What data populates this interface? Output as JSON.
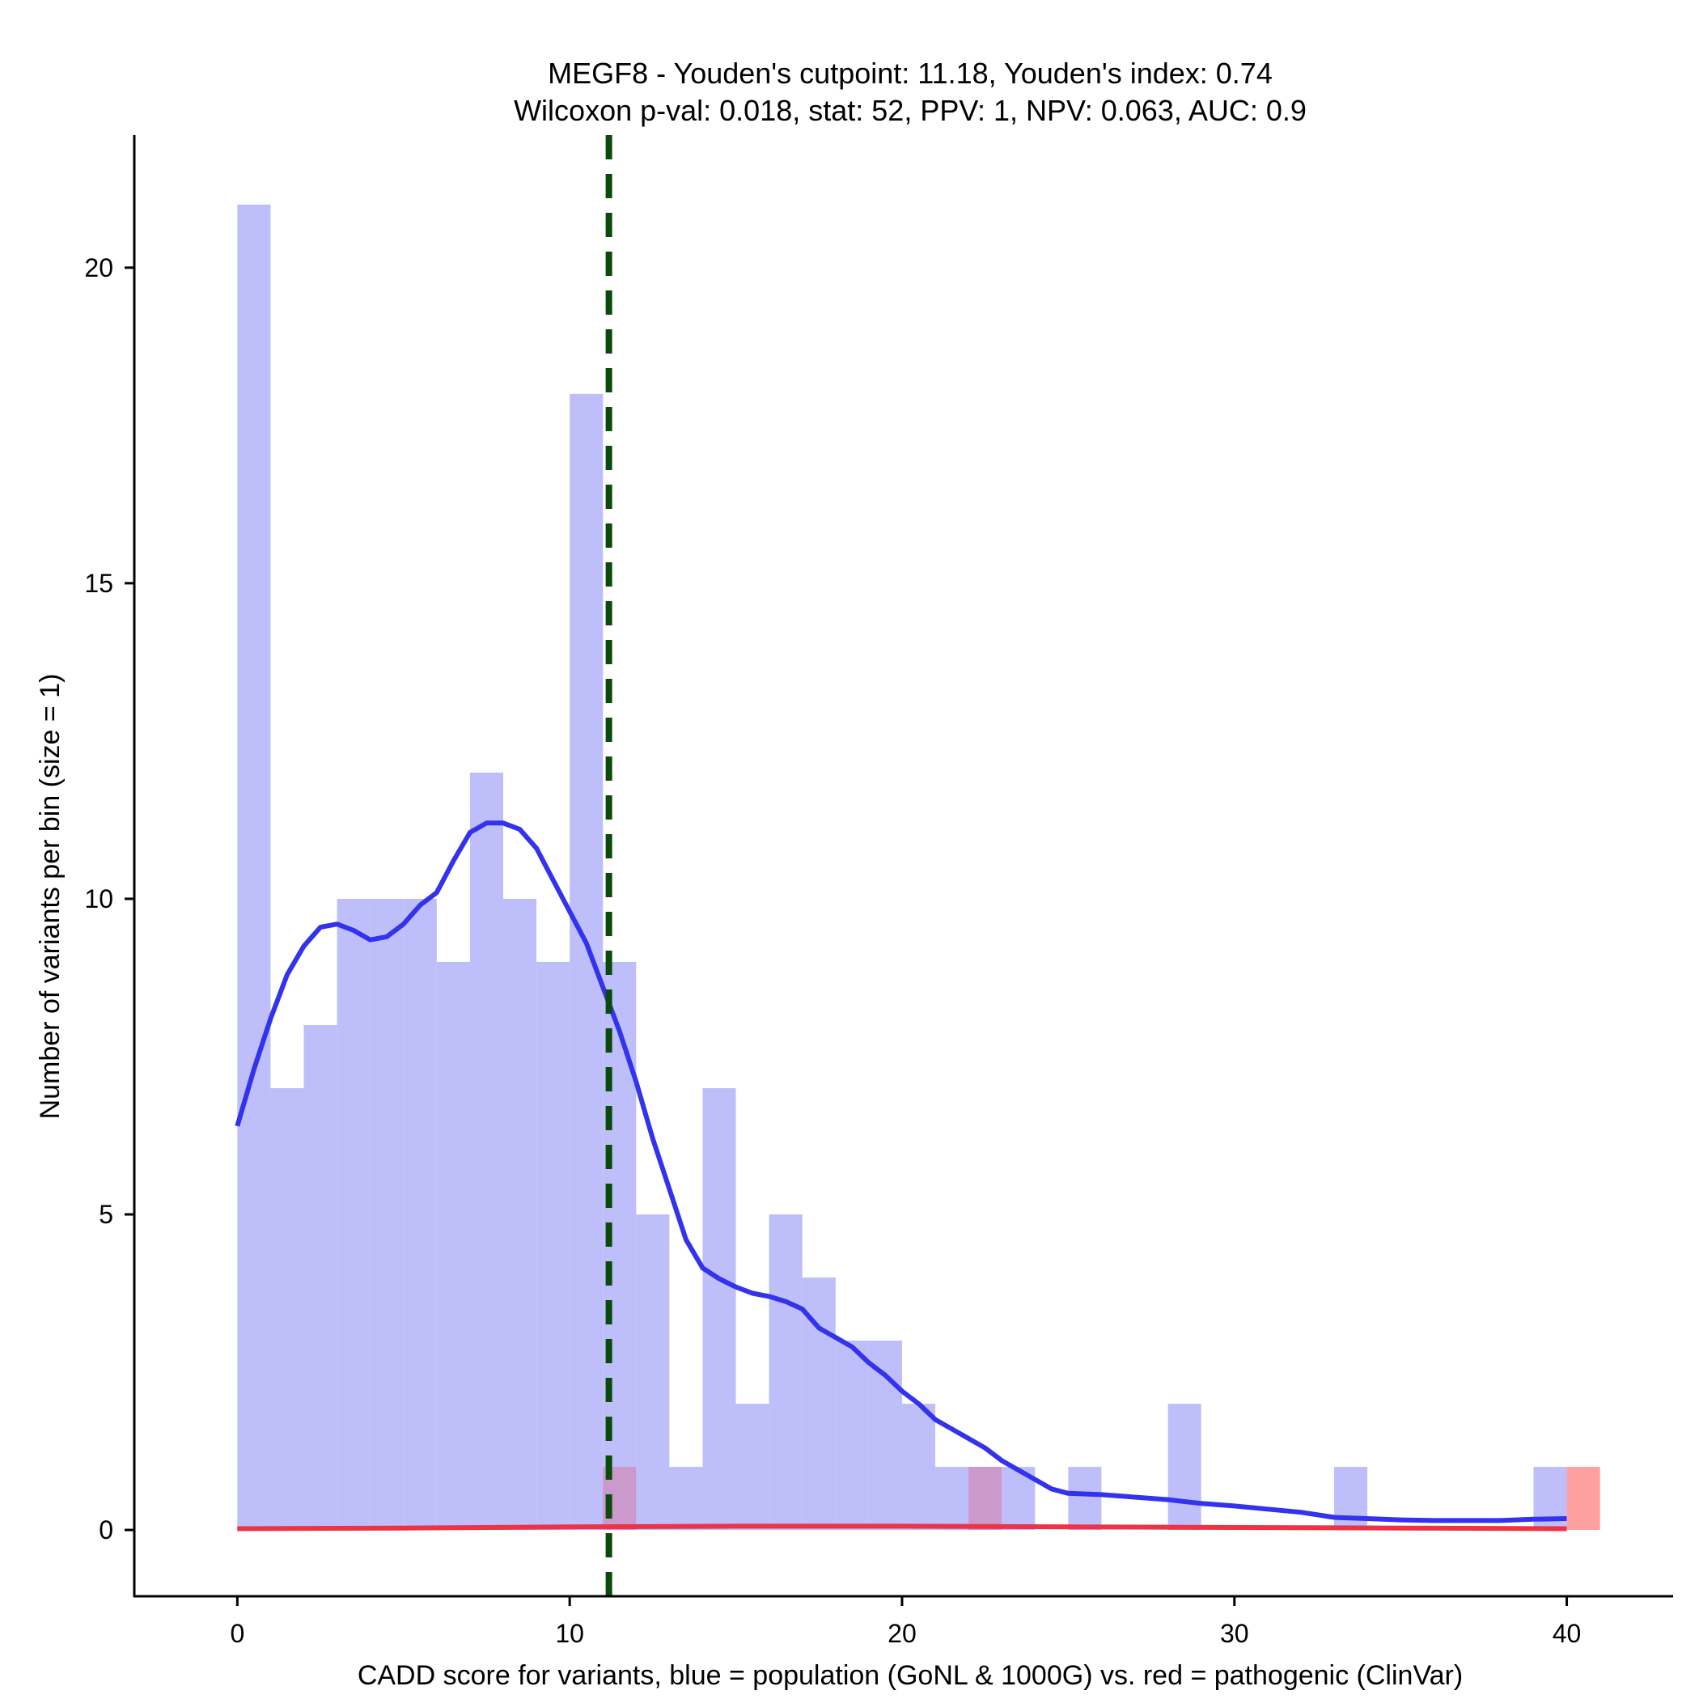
{
  "chart_data": {
    "type": "histogram",
    "title_line1": "MEGF8 - Youden's cutpoint: 11.18, Youden's index: 0.74",
    "title_line2": "Wilcoxon p-val: 0.018, stat: 52, PPV: 1, NPV: 0.063, AUC: 0.9",
    "xlabel": "CADD score for variants, blue = population (GoNL & 1000G) vs. red = pathogenic (ClinVar)",
    "ylabel": "Number of variants per bin (size = 1)",
    "xlim": [
      -3.1,
      43.2
    ],
    "ylim": [
      -1.05,
      22.1
    ],
    "x_ticks": [
      0,
      10,
      20,
      30,
      40
    ],
    "x_tick_labels": [
      "0",
      "10",
      "20",
      "30",
      "40"
    ],
    "y_ticks": [
      0,
      5,
      10,
      15,
      20
    ],
    "y_tick_labels": [
      "0",
      "5",
      "10",
      "15",
      "20"
    ],
    "bin_width": 1,
    "cutpoint": 11.18,
    "colors": {
      "population_bar": "#bebefb",
      "pathogenic_bar": "#ffa0a0",
      "overlap_bar": "#cc99cc",
      "population_density": "#3333ee",
      "pathogenic_density": "#ee3344",
      "cutpoint_line": "#0a4a0a"
    },
    "series": [
      {
        "name": "population (GoNL & 1000G)",
        "bins": [
          {
            "x": 0,
            "count": 21
          },
          {
            "x": 1,
            "count": 7
          },
          {
            "x": 2,
            "count": 8
          },
          {
            "x": 3,
            "count": 10
          },
          {
            "x": 4,
            "count": 10
          },
          {
            "x": 5,
            "count": 10
          },
          {
            "x": 6,
            "count": 9
          },
          {
            "x": 7,
            "count": 12
          },
          {
            "x": 8,
            "count": 10
          },
          {
            "x": 9,
            "count": 9
          },
          {
            "x": 10,
            "count": 18
          },
          {
            "x": 11,
            "count": 9
          },
          {
            "x": 12,
            "count": 5
          },
          {
            "x": 13,
            "count": 1
          },
          {
            "x": 14,
            "count": 7
          },
          {
            "x": 15,
            "count": 2
          },
          {
            "x": 16,
            "count": 5
          },
          {
            "x": 17,
            "count": 4
          },
          {
            "x": 18,
            "count": 3
          },
          {
            "x": 19,
            "count": 3
          },
          {
            "x": 20,
            "count": 2
          },
          {
            "x": 21,
            "count": 1
          },
          {
            "x": 22,
            "count": 1
          },
          {
            "x": 23,
            "count": 1
          },
          {
            "x": 25,
            "count": 1
          },
          {
            "x": 28,
            "count": 2
          },
          {
            "x": 33,
            "count": 1
          },
          {
            "x": 39,
            "count": 1
          }
        ]
      },
      {
        "name": "pathogenic (ClinVar)",
        "bins": [
          {
            "x": 11,
            "count": 1
          },
          {
            "x": 22,
            "count": 1
          },
          {
            "x": 40,
            "count": 1
          }
        ]
      }
    ],
    "density_population": {
      "x": [
        0,
        0.5,
        1,
        1.5,
        2,
        2.5,
        3,
        3.5,
        4,
        4.5,
        5,
        5.5,
        6,
        6.5,
        7,
        7.5,
        8,
        8.5,
        9,
        9.5,
        10,
        10.5,
        11,
        11.5,
        12,
        12.5,
        13,
        13.5,
        14,
        14.5,
        15,
        15.5,
        16,
        16.5,
        17,
        17.5,
        18,
        18.5,
        19,
        19.5,
        20,
        20.5,
        21,
        21.5,
        22,
        22.5,
        23,
        23.5,
        24,
        24.5,
        25,
        26,
        27,
        28,
        29,
        30,
        31,
        32,
        33,
        34,
        35,
        36,
        37,
        38,
        39,
        40
      ],
      "y": [
        6.4,
        7.3,
        8.1,
        8.8,
        9.25,
        9.55,
        9.6,
        9.5,
        9.35,
        9.4,
        9.6,
        9.9,
        10.1,
        10.6,
        11.05,
        11.2,
        11.2,
        11.1,
        10.8,
        10.3,
        9.8,
        9.3,
        8.6,
        7.9,
        7.1,
        6.2,
        5.4,
        4.6,
        4.15,
        3.98,
        3.85,
        3.75,
        3.7,
        3.62,
        3.5,
        3.2,
        3.05,
        2.9,
        2.65,
        2.45,
        2.2,
        2.0,
        1.75,
        1.6,
        1.45,
        1.3,
        1.1,
        0.95,
        0.8,
        0.65,
        0.58,
        0.56,
        0.52,
        0.48,
        0.42,
        0.38,
        0.33,
        0.28,
        0.2,
        0.18,
        0.16,
        0.15,
        0.15,
        0.15,
        0.17,
        0.18
      ]
    },
    "density_pathogenic": {
      "x": [
        0,
        5,
        10,
        15,
        20,
        25,
        30,
        35,
        40
      ],
      "y": [
        0.02,
        0.03,
        0.05,
        0.06,
        0.06,
        0.05,
        0.04,
        0.03,
        0.02
      ]
    }
  }
}
